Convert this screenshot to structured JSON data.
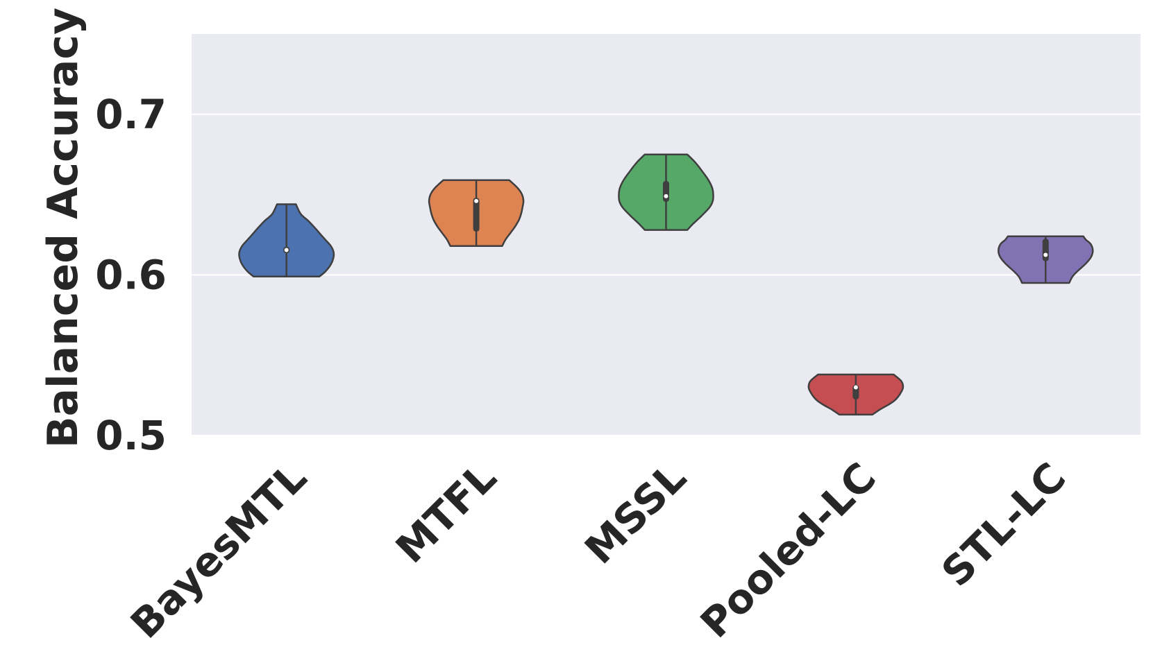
{
  "chart_data": {
    "type": "violin",
    "title": "",
    "xlabel": "",
    "ylabel": "Balanced Accuracy",
    "ylim": [
      0.5,
      0.75
    ],
    "yticks": [
      0.5,
      0.6,
      0.7
    ],
    "ytick_labels": [
      "0.5",
      "0.6",
      "0.7"
    ],
    "grid": true,
    "categories": [
      "BayesMTL",
      "MTFL",
      "MSSL",
      "Pooled-LC",
      "STL-LC"
    ],
    "colors": [
      "#4c72b0",
      "#dd8452",
      "#55a868",
      "#c44e52",
      "#8172b3"
    ],
    "series": [
      {
        "category": "BayesMTL",
        "min": 0.599,
        "max": 0.644,
        "q1": 0.6135,
        "median": 0.6155,
        "q3": 0.6175,
        "density": [
          [
            0.599,
            0.7
          ],
          [
            0.602,
            0.82
          ],
          [
            0.606,
            0.93
          ],
          [
            0.61,
            0.99
          ],
          [
            0.614,
            1.0
          ],
          [
            0.618,
            0.94
          ],
          [
            0.622,
            0.82
          ],
          [
            0.626,
            0.7
          ],
          [
            0.63,
            0.58
          ],
          [
            0.634,
            0.45
          ],
          [
            0.638,
            0.3
          ],
          [
            0.644,
            0.2
          ]
        ]
      },
      {
        "category": "MTFL",
        "min": 0.618,
        "max": 0.659,
        "q1": 0.627,
        "median": 0.646,
        "q3": 0.648,
        "density": [
          [
            0.618,
            0.55
          ],
          [
            0.622,
            0.62
          ],
          [
            0.626,
            0.72
          ],
          [
            0.63,
            0.82
          ],
          [
            0.634,
            0.9
          ],
          [
            0.638,
            0.95
          ],
          [
            0.642,
            0.98
          ],
          [
            0.646,
            1.0
          ],
          [
            0.65,
            0.97
          ],
          [
            0.654,
            0.88
          ],
          [
            0.659,
            0.7
          ]
        ]
      },
      {
        "category": "MSSL",
        "min": 0.628,
        "max": 0.675,
        "q1": 0.6455,
        "median": 0.649,
        "q3": 0.6585,
        "density": [
          [
            0.628,
            0.45
          ],
          [
            0.632,
            0.58
          ],
          [
            0.637,
            0.76
          ],
          [
            0.642,
            0.92
          ],
          [
            0.646,
            0.99
          ],
          [
            0.65,
            1.0
          ],
          [
            0.654,
            0.98
          ],
          [
            0.659,
            0.9
          ],
          [
            0.664,
            0.78
          ],
          [
            0.67,
            0.62
          ],
          [
            0.675,
            0.45
          ]
        ]
      },
      {
        "category": "Pooled-LC",
        "min": 0.513,
        "max": 0.538,
        "q1": 0.5225,
        "median": 0.53,
        "q3": 0.5315,
        "density": [
          [
            0.513,
            0.35
          ],
          [
            0.516,
            0.5
          ],
          [
            0.519,
            0.68
          ],
          [
            0.522,
            0.83
          ],
          [
            0.526,
            0.94
          ],
          [
            0.53,
            1.0
          ],
          [
            0.534,
            0.96
          ],
          [
            0.538,
            0.8
          ]
        ]
      },
      {
        "category": "STL-LC",
        "min": 0.595,
        "max": 0.624,
        "q1": 0.6085,
        "median": 0.6125,
        "q3": 0.6225,
        "density": [
          [
            0.595,
            0.5
          ],
          [
            0.599,
            0.57
          ],
          [
            0.603,
            0.7
          ],
          [
            0.607,
            0.85
          ],
          [
            0.611,
            0.96
          ],
          [
            0.615,
            1.0
          ],
          [
            0.619,
            0.96
          ],
          [
            0.622,
            0.85
          ],
          [
            0.624,
            0.8
          ]
        ]
      }
    ]
  }
}
